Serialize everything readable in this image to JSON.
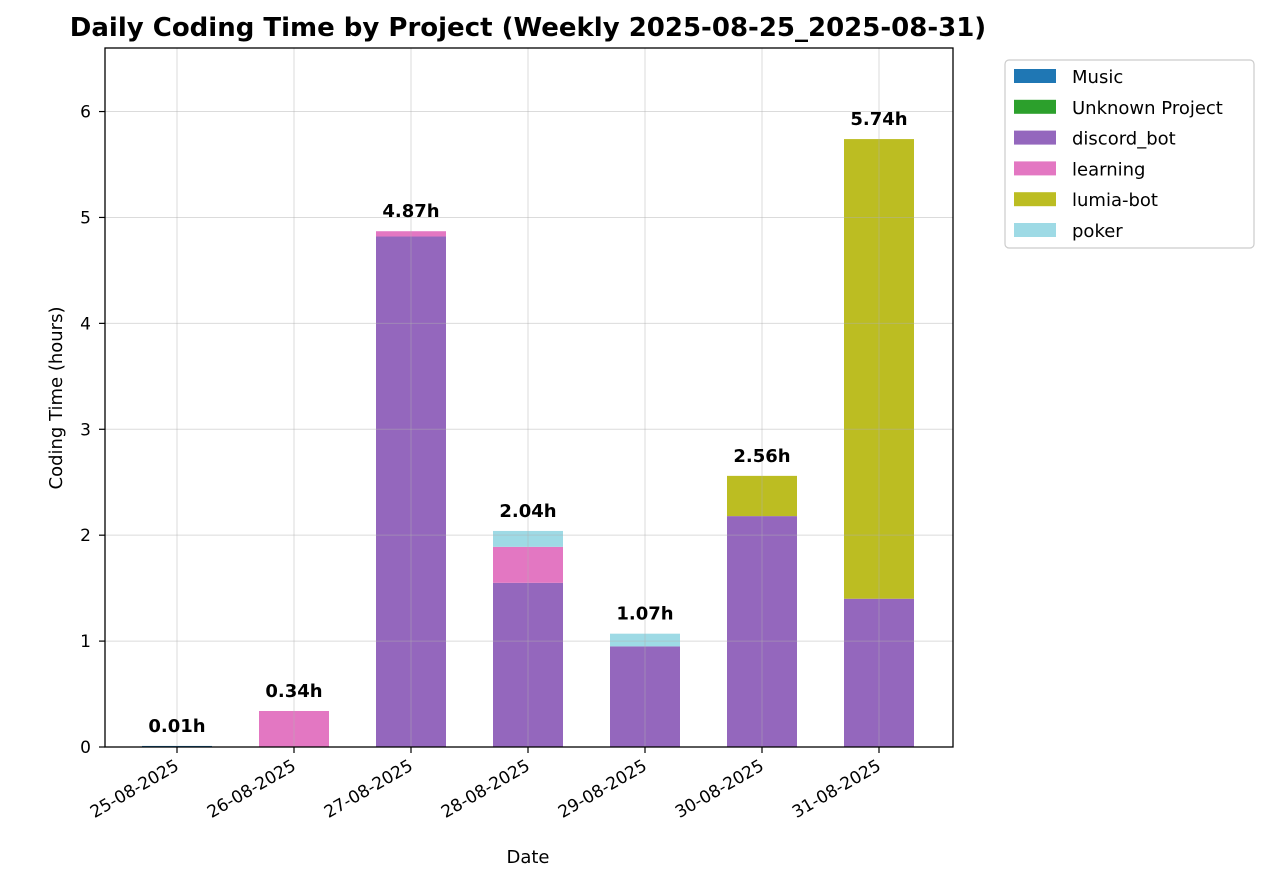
{
  "chart_data": {
    "type": "bar",
    "stacked": true,
    "title": "Daily Coding Time by Project (Weekly 2025-08-25_2025-08-31)",
    "xlabel": "Date",
    "ylabel": "Coding Time (hours)",
    "categories": [
      "25-08-2025",
      "26-08-2025",
      "27-08-2025",
      "28-08-2025",
      "29-08-2025",
      "30-08-2025",
      "31-08-2025"
    ],
    "ylim": [
      0,
      6.6
    ],
    "yticks": [
      0,
      1,
      2,
      3,
      4,
      5,
      6
    ],
    "grid": true,
    "legend_position": "outside-top-right",
    "series": [
      {
        "name": "Music",
        "color": "#1f77b4",
        "values": [
          0.01,
          0,
          0,
          0,
          0,
          0,
          0
        ]
      },
      {
        "name": "Unknown Project",
        "color": "#2ca02c",
        "values": [
          0,
          0,
          0,
          0,
          0,
          0,
          0
        ]
      },
      {
        "name": "discord_bot",
        "color": "#9467bd",
        "values": [
          0,
          0,
          4.82,
          1.55,
          0.95,
          2.18,
          1.4
        ]
      },
      {
        "name": "learning",
        "color": "#e377c2",
        "values": [
          0,
          0.34,
          0.05,
          0.34,
          0,
          0,
          0
        ]
      },
      {
        "name": "lumia-bot",
        "color": "#bcbd22",
        "values": [
          0,
          0,
          0,
          0,
          0,
          0.38,
          4.34
        ]
      },
      {
        "name": "poker",
        "color": "#9edae5",
        "values": [
          0,
          0,
          0,
          0.15,
          0.12,
          0,
          0
        ]
      }
    ],
    "total_labels": [
      "0.01h",
      "0.34h",
      "4.87h",
      "2.04h",
      "1.07h",
      "2.56h",
      "5.74h"
    ]
  }
}
